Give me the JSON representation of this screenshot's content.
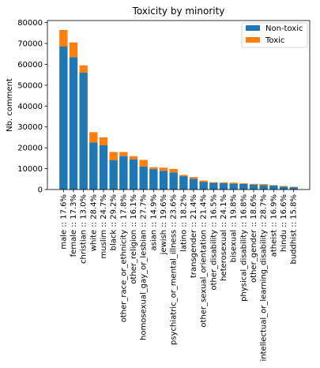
{
  "chart_data": {
    "type": "bar",
    "stacked": true,
    "title": "Toxicity by minority",
    "xlabel": "",
    "ylabel": "Nb. comment",
    "ylim": [
      0,
      81000
    ],
    "yticks": [
      0,
      10000,
      20000,
      30000,
      40000,
      50000,
      60000,
      70000,
      80000
    ],
    "grid": false,
    "legend_position": "top-right",
    "categories": [
      "male :: 17.6%",
      "female :: 17.3%",
      "christian :: 13.0%",
      "white :: 28.4%",
      "muslim :: 24.7%",
      "black :: 29.2%",
      "other_race_or_ethnicity :: 17.8%",
      "other_religion :: 16.1%",
      "homosexual_gay_or_lesbian :: 27.7%",
      "asian :: 14.9%",
      "jewish :: 19.6%",
      "psychiatric_or_mental_illness :: 23.6%",
      "latino :: 18.2%",
      "transgender :: 21.4%",
      "other_sexual_orientation :: 21.4%",
      "other_disability :: 16.5%",
      "heterosexual :: 24.1%",
      "bisexual :: 19.8%",
      "physical_disability :: 16.8%",
      "other_gender :: 18.6%",
      "intellectual_or_learning_disability :: 28.7%",
      "atheist :: 16.9%",
      "hindu :: 16.6%",
      "buddhist :: 15.8%"
    ],
    "series": [
      {
        "name": "Non-toxic",
        "color": "#1f77b4",
        "values": [
          68500,
          63500,
          56000,
          22500,
          21200,
          14000,
          16000,
          14500,
          11000,
          9800,
          9000,
          8200,
          6400,
          5200,
          3600,
          3200,
          3000,
          2800,
          2700,
          2300,
          2100,
          1900,
          1400,
          1100
        ]
      },
      {
        "name": "Toxic",
        "color": "#ff7f0e",
        "values": [
          8000,
          7000,
          3500,
          5000,
          3800,
          4000,
          2000,
          1500,
          3200,
          900,
          1500,
          1700,
          600,
          800,
          700,
          300,
          400,
          500,
          300,
          400,
          500,
          200,
          300,
          200
        ]
      }
    ]
  }
}
